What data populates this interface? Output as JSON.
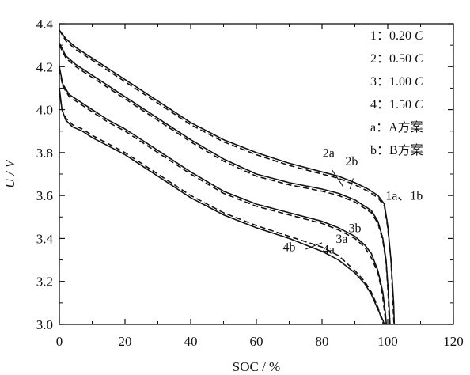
{
  "chart_data": {
    "type": "line",
    "xlabel": "SOC / %",
    "ylabel": "U / V",
    "xlim": [
      0,
      120
    ],
    "ylim": [
      3.0,
      4.4
    ],
    "x_ticks": [
      0,
      20,
      40,
      60,
      80,
      100,
      120
    ],
    "x_tick_labels": [
      "0",
      "20",
      "40",
      "60",
      "80",
      "100",
      "120"
    ],
    "y_ticks": [
      3.0,
      3.2,
      3.4,
      3.6,
      3.8,
      4.0,
      4.2,
      4.4
    ],
    "y_tick_labels": [
      "3.0",
      "3.2",
      "3.4",
      "3.6",
      "3.8",
      "4.0",
      "4.2",
      "4.4"
    ],
    "grid": false,
    "legend": {
      "placement": "top-right",
      "entries": [
        {
          "key": "1",
          "sep": "：",
          "text": "0.20",
          "unit": "C"
        },
        {
          "key": "2",
          "sep": "：",
          "text": "0.50",
          "unit": "C"
        },
        {
          "key": "3",
          "sep": "：",
          "text": "1.00",
          "unit": "C"
        },
        {
          "key": "4",
          "sep": "：",
          "text": "1.50",
          "unit": "C"
        },
        {
          "key": "a",
          "sep": "：",
          "text": "A方案",
          "unit": ""
        },
        {
          "key": "b",
          "sep": "：",
          "text": "B方案",
          "unit": ""
        }
      ]
    },
    "series": [
      {
        "rate": "0.20",
        "scheme": "A",
        "style": "solid",
        "x": [
          0,
          2,
          5,
          10,
          15,
          20,
          30,
          40,
          50,
          60,
          70,
          80,
          85,
          90,
          94,
          97,
          99,
          100,
          101,
          101.8,
          102
        ],
        "y": [
          4.37,
          4.33,
          4.29,
          4.24,
          4.19,
          4.14,
          4.04,
          3.94,
          3.86,
          3.8,
          3.75,
          3.71,
          3.69,
          3.66,
          3.63,
          3.6,
          3.56,
          3.46,
          3.3,
          3.1,
          3.0
        ]
      },
      {
        "rate": "0.20",
        "scheme": "B",
        "style": "dashed",
        "x": [
          0,
          2,
          5,
          10,
          15,
          20,
          30,
          40,
          50,
          60,
          70,
          80,
          85,
          90,
          94,
          97,
          99,
          100,
          101,
          101.6,
          101.9
        ],
        "y": [
          4.37,
          4.32,
          4.28,
          4.23,
          4.18,
          4.13,
          4.03,
          3.93,
          3.85,
          3.79,
          3.74,
          3.7,
          3.68,
          3.65,
          3.62,
          3.59,
          3.55,
          3.45,
          3.3,
          3.1,
          3.0
        ]
      },
      {
        "rate": "0.50",
        "scheme": "A",
        "style": "solid",
        "x": [
          0,
          2,
          5,
          10,
          15,
          20,
          30,
          40,
          50,
          60,
          70,
          80,
          85,
          90,
          95,
          97,
          98.5,
          99.5,
          100.2,
          100.7
        ],
        "y": [
          4.31,
          4.25,
          4.21,
          4.16,
          4.11,
          4.06,
          3.96,
          3.86,
          3.77,
          3.7,
          3.66,
          3.63,
          3.61,
          3.58,
          3.53,
          3.48,
          3.4,
          3.3,
          3.15,
          3.0
        ]
      },
      {
        "rate": "0.50",
        "scheme": "B",
        "style": "dashed",
        "x": [
          0,
          2,
          5,
          10,
          15,
          20,
          30,
          40,
          50,
          60,
          70,
          80,
          85,
          90,
          95,
          97,
          98.5,
          99.5,
          100.1,
          100.5
        ],
        "y": [
          4.3,
          4.24,
          4.2,
          4.15,
          4.1,
          4.05,
          3.95,
          3.85,
          3.76,
          3.69,
          3.65,
          3.62,
          3.6,
          3.57,
          3.52,
          3.47,
          3.39,
          3.29,
          3.15,
          3.0
        ]
      },
      {
        "rate": "1.00",
        "scheme": "A",
        "style": "solid",
        "x": [
          0,
          1,
          3,
          6,
          10,
          15,
          20,
          30,
          40,
          50,
          60,
          70,
          80,
          85,
          90,
          93,
          95,
          97,
          98.5,
          99.3,
          99.6
        ],
        "y": [
          4.2,
          4.12,
          4.07,
          4.04,
          4.0,
          3.95,
          3.91,
          3.81,
          3.71,
          3.62,
          3.56,
          3.52,
          3.48,
          3.45,
          3.41,
          3.37,
          3.33,
          3.25,
          3.15,
          3.05,
          3.0
        ]
      },
      {
        "rate": "1.00",
        "scheme": "B",
        "style": "dashed",
        "x": [
          0,
          1,
          3,
          6,
          10,
          15,
          20,
          30,
          40,
          50,
          60,
          70,
          80,
          85,
          90,
          93,
          95,
          97,
          98.3,
          99.1,
          99.4
        ],
        "y": [
          4.19,
          4.11,
          4.06,
          4.03,
          3.99,
          3.94,
          3.9,
          3.8,
          3.7,
          3.61,
          3.55,
          3.51,
          3.47,
          3.44,
          3.4,
          3.36,
          3.31,
          3.24,
          3.15,
          3.05,
          3.0
        ]
      },
      {
        "rate": "1.50",
        "scheme": "A",
        "style": "solid",
        "x": [
          0,
          0.8,
          2,
          4,
          7,
          10,
          15,
          20,
          30,
          40,
          50,
          60,
          70,
          80,
          85,
          90,
          93,
          95,
          97,
          98.5,
          99.0
        ],
        "y": [
          4.1,
          4.0,
          3.95,
          3.92,
          3.9,
          3.87,
          3.83,
          3.79,
          3.69,
          3.59,
          3.51,
          3.45,
          3.4,
          3.34,
          3.3,
          3.24,
          3.19,
          3.14,
          3.07,
          3.02,
          3.0
        ]
      },
      {
        "rate": "1.50",
        "scheme": "B",
        "style": "dashed",
        "x": [
          0,
          0.8,
          2,
          4,
          7,
          10,
          15,
          20,
          30,
          40,
          50,
          60,
          70,
          80,
          85,
          90,
          93,
          95,
          97,
          98.2,
          98.7
        ],
        "y": [
          4.09,
          4.0,
          3.96,
          3.93,
          3.91,
          3.88,
          3.84,
          3.8,
          3.7,
          3.6,
          3.52,
          3.46,
          3.41,
          3.36,
          3.32,
          3.25,
          3.2,
          3.15,
          3.08,
          3.02,
          3.0
        ]
      }
    ],
    "annotations": [
      {
        "text": "2a",
        "x": 82,
        "y": 3.78
      },
      {
        "text": "2b",
        "x": 89,
        "y": 3.74
      },
      {
        "text": "1a、1b",
        "x": 105,
        "y": 3.58
      },
      {
        "text": "3b",
        "x": 90,
        "y": 3.43
      },
      {
        "text": "3a",
        "x": 86,
        "y": 3.38
      },
      {
        "text": "4b",
        "x": 70,
        "y": 3.34
      },
      {
        "text": "4a",
        "x": 82,
        "y": 3.33
      }
    ]
  }
}
